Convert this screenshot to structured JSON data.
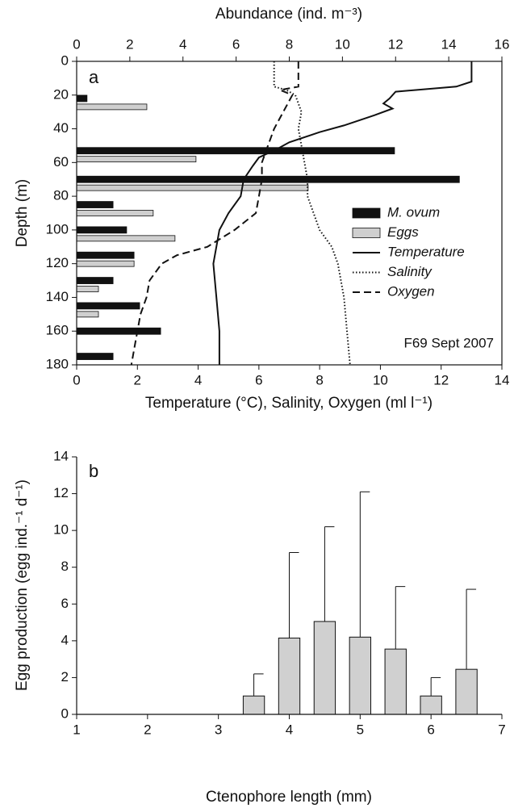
{
  "chart_data": [
    {
      "type": "profile",
      "panel_label": "a",
      "annotation": "F69 Sept 2007",
      "x2label": "Abundance (ind. m⁻³)",
      "xlabel": "Temperature (°C), Salinity, Oxygen (ml l⁻¹)",
      "ylabel": "Depth (m)",
      "x2lim": [
        0,
        16
      ],
      "x2ticks": [
        0,
        2,
        4,
        6,
        8,
        10,
        12,
        14,
        16
      ],
      "xlim": [
        0,
        14
      ],
      "xticks": [
        0,
        2,
        4,
        6,
        8,
        10,
        12,
        14
      ],
      "ylim": [
        0,
        180
      ],
      "yticks": [
        0,
        20,
        40,
        60,
        80,
        100,
        120,
        140,
        160,
        180
      ],
      "y_inverted": true,
      "legend": "right",
      "bars": [
        {
          "name": "M. ovum",
          "color": "#111111",
          "axis": "x2",
          "depth": [
            22,
            53,
            70,
            85,
            100,
            115,
            130,
            145,
            160,
            175
          ],
          "values": [
            0.39,
            11.96,
            14.4,
            1.37,
            1.88,
            2.16,
            1.37,
            2.37,
            3.16,
            1.37
          ]
        },
        {
          "name": "Eggs",
          "color": "#cfcfcf",
          "axis": "x2",
          "depth": [
            27,
            58,
            75,
            90,
            105,
            120,
            135,
            150
          ],
          "values": [
            2.64,
            4.49,
            8.71,
            2.88,
            3.7,
            2.16,
            0.82,
            0.82
          ]
        }
      ],
      "lines": [
        {
          "name": "Temperature",
          "dash": "solid",
          "depth": [
            0,
            12,
            15,
            18,
            22,
            25,
            28,
            32,
            38,
            42,
            48,
            52,
            57,
            62,
            70,
            80,
            90,
            100,
            120,
            140,
            160,
            180
          ],
          "values": [
            13.0,
            13.0,
            12.5,
            10.5,
            10.3,
            10.1,
            10.4,
            9.8,
            8.8,
            8.0,
            7.0,
            6.6,
            6.0,
            5.8,
            5.5,
            5.4,
            5.0,
            4.7,
            4.5,
            4.6,
            4.7,
            4.7
          ]
        },
        {
          "name": "Salinity",
          "dash": "dotted",
          "depth": [
            0,
            15,
            17,
            20,
            30,
            40,
            50,
            60,
            70,
            80,
            90,
            100,
            110,
            120,
            130,
            140,
            160,
            180
          ],
          "values": [
            6.5,
            6.5,
            6.9,
            7.2,
            7.4,
            7.3,
            7.4,
            7.5,
            7.6,
            7.6,
            7.8,
            8.0,
            8.4,
            8.6,
            8.7,
            8.8,
            8.9,
            9.0
          ]
        },
        {
          "name": "Oxygen",
          "dash": "dashed",
          "depth": [
            0,
            15,
            17,
            20,
            30,
            40,
            50,
            60,
            70,
            80,
            90,
            100,
            110,
            115,
            120,
            130,
            140,
            150,
            160,
            170,
            180
          ],
          "values": [
            7.3,
            7.3,
            6.7,
            7.1,
            6.8,
            6.5,
            6.3,
            6.1,
            6.1,
            6.0,
            5.9,
            5.2,
            4.3,
            3.3,
            2.8,
            2.4,
            2.3,
            2.1,
            2.0,
            1.9,
            1.8
          ]
        }
      ]
    },
    {
      "type": "bar",
      "panel_label": "b",
      "xlabel": "Ctenophore length (mm)",
      "ylabel": "Egg production (egg ind.⁻¹ d⁻¹)",
      "xlim": [
        1,
        7
      ],
      "xticks": [
        1,
        2,
        3,
        4,
        5,
        6,
        7
      ],
      "ylim": [
        0,
        14
      ],
      "yticks": [
        0,
        2,
        4,
        6,
        8,
        10,
        12,
        14
      ],
      "color": "#d0d0d0",
      "x": [
        3.5,
        4,
        4.5,
        5,
        5.5,
        6,
        6.5
      ],
      "values": [
        1.0,
        4.15,
        5.05,
        4.2,
        3.55,
        1.0,
        2.45
      ],
      "errors": [
        1.2,
        4.65,
        5.15,
        7.9,
        3.4,
        1.0,
        4.35
      ]
    }
  ]
}
